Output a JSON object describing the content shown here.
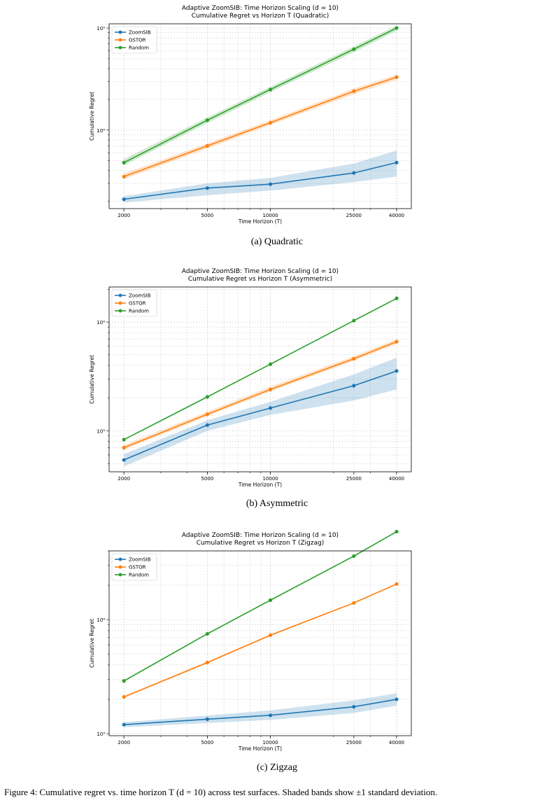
{
  "chart_data": [
    {
      "type": "line",
      "title": "Adaptive ZoomSIB: Time Horizon Scaling (d = 10)",
      "subtitle": "Cumulative Regret vs Horizon T  (Quadratic)",
      "xlabel": "Time Horizon (T)",
      "ylabel": "Cumulative Regret",
      "x_scale": "log",
      "y_scale": "log",
      "x": [
        2000,
        5000,
        10000,
        25000,
        40000
      ],
      "x_tick_labels": [
        "2000",
        "5000",
        "10000",
        "25000",
        "40000"
      ],
      "xlim": [
        1700,
        47000
      ],
      "ylim": [
        1700,
        110000
      ],
      "y_ticks": [
        {
          "value": 10000,
          "label": "10⁴"
        },
        {
          "value": 100000,
          "label": "10⁵"
        }
      ],
      "grid": true,
      "legend_position": "top-left",
      "series": [
        {
          "name": "ZoomSIB",
          "color": "#1f77b4",
          "values": [
            2100,
            2700,
            2950,
            3800,
            4800
          ],
          "band_low": [
            1950,
            2300,
            2550,
            3100,
            3500
          ],
          "band_high": [
            2250,
            3000,
            3400,
            4700,
            6300
          ]
        },
        {
          "name": "GSTOR",
          "color": "#ff7f0e",
          "values": [
            3500,
            7000,
            11800,
            24000,
            33000
          ],
          "band_low": [
            3300,
            6600,
            11200,
            22500,
            31000
          ],
          "band_high": [
            3750,
            7400,
            12500,
            25500,
            35000
          ]
        },
        {
          "name": "Random",
          "color": "#2ca02c",
          "values": [
            4800,
            12500,
            25000,
            62000,
            100000
          ],
          "band_low": [
            4500,
            11700,
            23500,
            58000,
            94000
          ],
          "band_high": [
            5200,
            13300,
            26600,
            66000,
            106000
          ]
        }
      ],
      "caption": "(a) Quadratic"
    },
    {
      "type": "line",
      "title": "Adaptive ZoomSIB: Time Horizon Scaling (d = 10)",
      "subtitle": "Cumulative Regret vs Horizon T  (Asymmetric)",
      "xlabel": "Time Horizon (T)",
      "ylabel": "Cumulative Regret",
      "x_scale": "log",
      "y_scale": "log",
      "x": [
        2000,
        5000,
        10000,
        25000,
        40000
      ],
      "x_tick_labels": [
        "2000",
        "5000",
        "10000",
        "25000",
        "40000"
      ],
      "xlim": [
        1700,
        47000
      ],
      "ylim": [
        420,
        21000
      ],
      "y_ticks": [
        {
          "value": 1000,
          "label": "10³"
        },
        {
          "value": 10000,
          "label": "10⁴"
        }
      ],
      "grid": true,
      "legend_position": "top-left",
      "series": [
        {
          "name": "ZoomSIB",
          "color": "#1f77b4",
          "values": [
            540,
            1130,
            1620,
            2600,
            3550
          ],
          "band_low": [
            470,
            1000,
            1400,
            1900,
            2400
          ],
          "band_high": [
            610,
            1250,
            1850,
            3300,
            4700
          ]
        },
        {
          "name": "GSTOR",
          "color": "#ff7f0e",
          "values": [
            700,
            1420,
            2400,
            4600,
            6600
          ],
          "band_low": [
            670,
            1360,
            2300,
            4400,
            6300
          ],
          "band_high": [
            740,
            1500,
            2550,
            4850,
            6950
          ]
        },
        {
          "name": "Random",
          "color": "#2ca02c",
          "values": [
            830,
            2050,
            4100,
            10300,
            16500
          ],
          "band_low": [
            820,
            2030,
            4070,
            10200,
            16400
          ],
          "band_high": [
            840,
            2070,
            4130,
            10400,
            16600
          ]
        }
      ],
      "caption": "(b) Asymmetric"
    },
    {
      "type": "line",
      "title": "Adaptive ZoomSIB: Time Horizon Scaling (d = 10)",
      "subtitle": "Cumulative Regret vs Horizon T  (Zigzag)",
      "xlabel": "Time Horizon (T)",
      "ylabel": "Cumulative Regret",
      "x_scale": "log",
      "y_scale": "log",
      "x": [
        2000,
        5000,
        10000,
        25000,
        40000
      ],
      "x_tick_labels": [
        "2000",
        "5000",
        "10000",
        "25000",
        "40000"
      ],
      "xlim": [
        1700,
        47000
      ],
      "ylim": [
        960,
        40000
      ],
      "y_ticks": [
        {
          "value": 1000,
          "label": "10³"
        },
        {
          "value": 10000,
          "label": "10⁴"
        }
      ],
      "grid": true,
      "legend_position": "top-left",
      "series": [
        {
          "name": "ZoomSIB",
          "color": "#1f77b4",
          "values": [
            1200,
            1340,
            1450,
            1720,
            2000
          ],
          "band_low": [
            1140,
            1240,
            1320,
            1520,
            1760
          ],
          "band_high": [
            1260,
            1440,
            1600,
            1960,
            2260
          ]
        },
        {
          "name": "GSTOR",
          "color": "#ff7f0e",
          "values": [
            2100,
            4200,
            7300,
            14000,
            20500
          ],
          "band_low": [
            2060,
            4120,
            7180,
            13800,
            20200
          ],
          "band_high": [
            2140,
            4280,
            7420,
            14200,
            20800
          ]
        },
        {
          "name": "Random",
          "color": "#2ca02c",
          "values": [
            2900,
            7500,
            14800,
            36000,
            59000
          ],
          "band_low": [
            2870,
            7430,
            14700,
            35700,
            58500
          ],
          "band_high": [
            2930,
            7570,
            14900,
            36300,
            59500
          ]
        }
      ],
      "caption": "(c) Zigzag"
    }
  ],
  "bottom_text": "Figure 4: Cumulative regret vs. time horizon T (d = 10) across test surfaces. Shaded bands show ±1 standard deviation."
}
